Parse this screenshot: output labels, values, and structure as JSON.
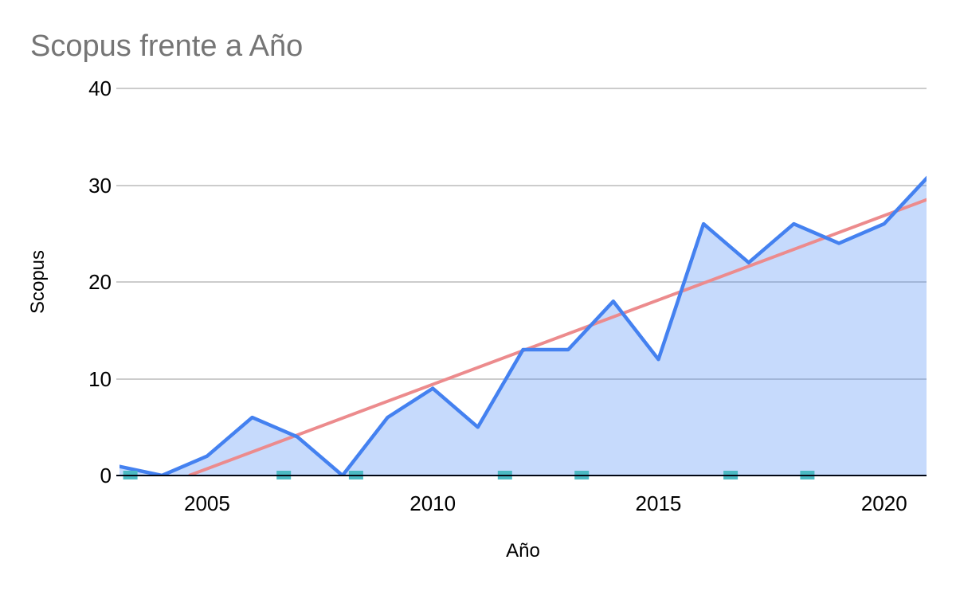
{
  "title": "Scopus frente a Año",
  "y_axis": {
    "label": "Scopus"
  },
  "x_axis": {
    "label": "Año"
  },
  "chart_data": {
    "type": "line",
    "title": "Scopus frente a Año",
    "xlabel": "Año",
    "ylabel": "Scopus",
    "xlim": [
      2003.06,
      2020.94
    ],
    "ylim": [
      0,
      40
    ],
    "x_ticks": [
      2005,
      2010,
      2015,
      2020
    ],
    "y_ticks": [
      0,
      10,
      20,
      30,
      40
    ],
    "grid": true,
    "legend": "none",
    "series": [
      {
        "name": "Scopus",
        "type": "area-line",
        "color": "#4481f0",
        "fill": "rgba(66,133,244,0.3)",
        "x": [
          2003,
          2004,
          2005,
          2006,
          2007,
          2008,
          2009,
          2010,
          2011,
          2012,
          2013,
          2014,
          2015,
          2016,
          2017,
          2018,
          2019,
          2020,
          2021
        ],
        "values": [
          1,
          0,
          2,
          6,
          4,
          0,
          6,
          9,
          5,
          13,
          13,
          18,
          12,
          26,
          22,
          26,
          24,
          26,
          31
        ]
      },
      {
        "name": "zero-baseline-markers",
        "type": "scatter-square",
        "color": "#4bb9c3",
        "x": [
          2003.3,
          2006.7,
          2008.3,
          2011.6,
          2013.3,
          2016.6,
          2018.3
        ],
        "values": [
          0,
          0,
          0,
          0,
          0,
          0,
          0
        ]
      }
    ],
    "trendline": {
      "color": "#ec8b8d",
      "x1": 2004.6,
      "y1": 0,
      "x2": 2021,
      "y2": 28.6
    },
    "grid_color": "#cccccc",
    "axis_line_color": "#000613"
  }
}
